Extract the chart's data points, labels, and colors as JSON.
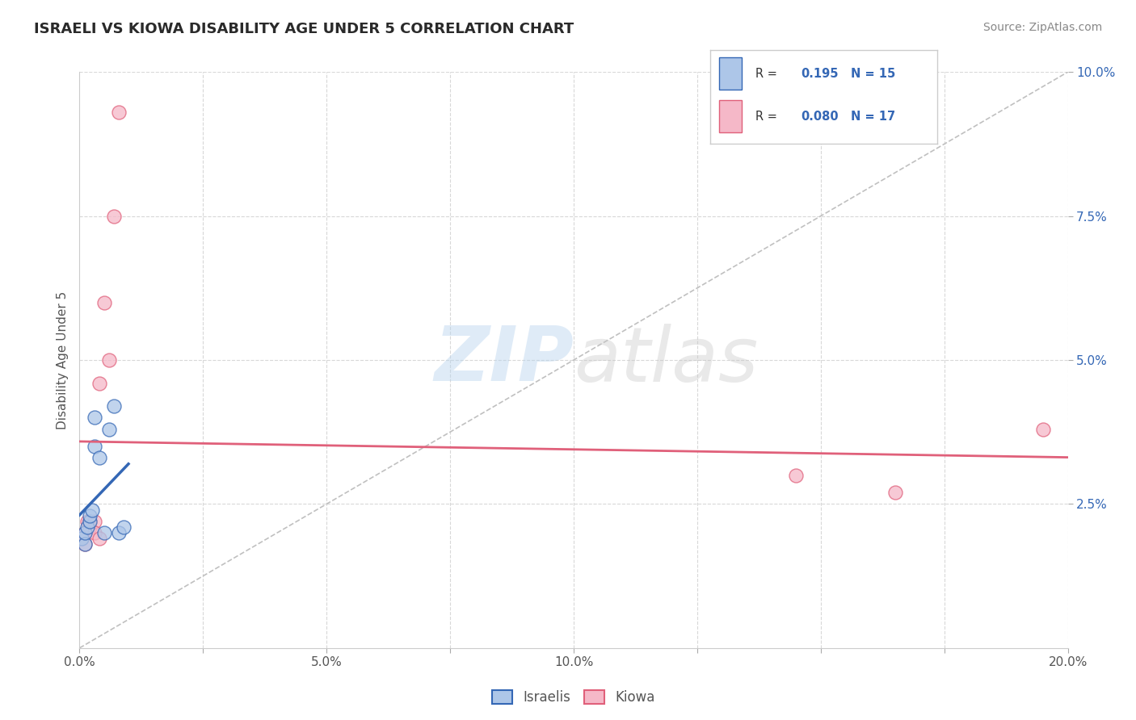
{
  "title": "ISRAELI VS KIOWA DISABILITY AGE UNDER 5 CORRELATION CHART",
  "source": "Source: ZipAtlas.com",
  "ylabel": "Disability Age Under 5",
  "xlim": [
    0.0,
    0.2
  ],
  "ylim": [
    0.0,
    0.1
  ],
  "xtick_values": [
    0.0,
    0.025,
    0.05,
    0.075,
    0.1,
    0.125,
    0.15,
    0.175,
    0.2
  ],
  "xtick_display": [
    0.0,
    0.05,
    0.1,
    0.15,
    0.2
  ],
  "ytick_values": [
    0.025,
    0.05,
    0.075,
    0.1
  ],
  "israelis_x": [
    0.0005,
    0.001,
    0.001,
    0.0015,
    0.002,
    0.002,
    0.0025,
    0.003,
    0.003,
    0.004,
    0.005,
    0.006,
    0.007,
    0.008,
    0.009
  ],
  "israelis_y": [
    0.019,
    0.018,
    0.02,
    0.021,
    0.022,
    0.023,
    0.024,
    0.035,
    0.04,
    0.033,
    0.02,
    0.038,
    0.042,
    0.02,
    0.021
  ],
  "kiowa_x": [
    0.0005,
    0.001,
    0.001,
    0.0015,
    0.002,
    0.002,
    0.003,
    0.003,
    0.004,
    0.004,
    0.005,
    0.006,
    0.007,
    0.008,
    0.145,
    0.165,
    0.195
  ],
  "kiowa_y": [
    0.019,
    0.018,
    0.02,
    0.022,
    0.021,
    0.022,
    0.022,
    0.02,
    0.019,
    0.046,
    0.06,
    0.05,
    0.075,
    0.093,
    0.03,
    0.027,
    0.038
  ],
  "israeli_color": "#adc6e8",
  "kiowa_color": "#f5b8c8",
  "israeli_line_color": "#3467b5",
  "kiowa_line_color": "#e0607a",
  "ref_line_color": "#c0c0c0",
  "R_israeli": 0.195,
  "N_israeli": 15,
  "R_kiowa": 0.08,
  "N_kiowa": 17,
  "legend_labels": [
    "Israelis",
    "Kiowa"
  ],
  "watermark_zip": "ZIP",
  "watermark_atlas": "atlas",
  "background_color": "#ffffff",
  "grid_color": "#d8d8d8",
  "title_color": "#2a2a2a",
  "source_color": "#888888",
  "label_color": "#555555",
  "right_tick_color": "#3467b5"
}
